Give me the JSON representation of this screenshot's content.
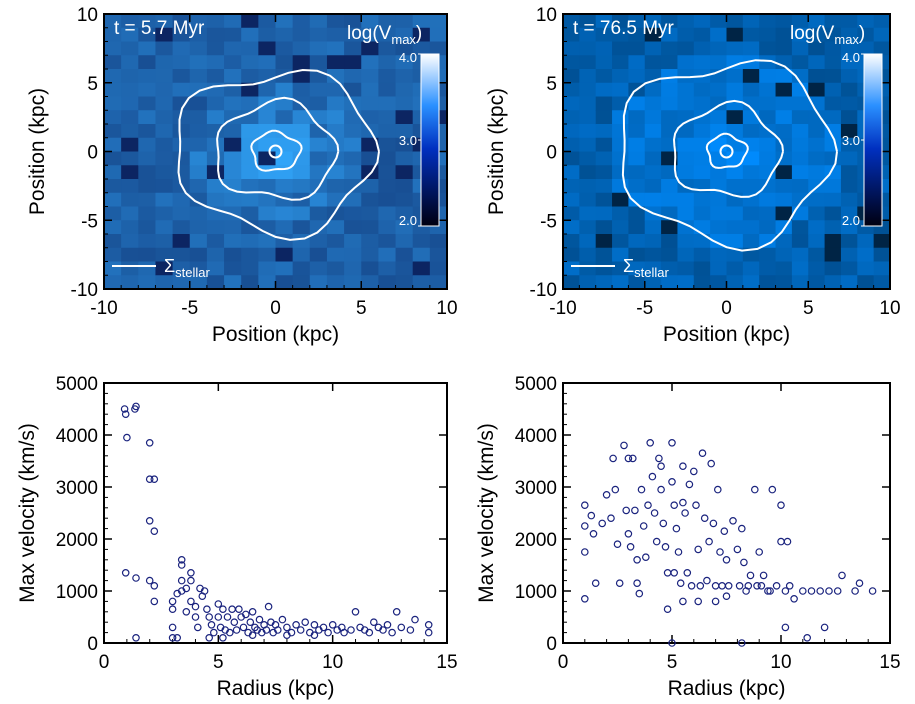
{
  "chart_data": [
    {
      "type": "heatmap",
      "panel": "top-left",
      "time_label": "t = 5.7 Myr",
      "colorbar_label": "log(V",
      "colorbar_sub": "max",
      "colorbar_close": ")",
      "colorbar_ticks": [
        "4.0",
        "3.0",
        "2.0"
      ],
      "colorbar_range": [
        2.0,
        4.0
      ],
      "legend_label": "Σ",
      "legend_sub": "stellar",
      "xlabel": "Position (kpc)",
      "ylabel": "Position (kpc)",
      "xlim": [
        -10,
        10
      ],
      "ylim": [
        -10,
        10
      ],
      "xticks": [
        "-10",
        "-5",
        "0",
        "5",
        "10"
      ],
      "yticks": [
        "-10",
        "-5",
        "0",
        "5",
        "10"
      ],
      "grid_cells": 20,
      "cell_values_description": "log10 of max velocity per 1 kpc cell; background ~2.6-2.9, centre ~3.5",
      "contours_radii_kpc": [
        1.4,
        3.5,
        5.8
      ]
    },
    {
      "type": "heatmap",
      "panel": "top-right",
      "time_label": "t = 76.5 Myr",
      "colorbar_label": "log(V",
      "colorbar_sub": "max",
      "colorbar_close": ")",
      "colorbar_ticks": [
        "4.0",
        "3.0",
        "2.0"
      ],
      "colorbar_range": [
        2.0,
        4.0
      ],
      "legend_label": "Σ",
      "legend_sub": "stellar",
      "xlabel": "Position (kpc)",
      "ylabel": "Position (kpc)",
      "xlim": [
        -10,
        10
      ],
      "ylim": [
        -10,
        10
      ],
      "xticks": [
        "-10",
        "-5",
        "0",
        "5",
        "10"
      ],
      "yticks": [
        "-10",
        "-5",
        "0",
        "5",
        "10"
      ],
      "grid_cells": 20,
      "contours_radii_kpc": [
        1.2,
        3.3,
        6.5
      ]
    },
    {
      "type": "scatter",
      "panel": "bottom-left",
      "xlabel": "Radius (kpc)",
      "ylabel": "Max velocity (km/s)",
      "xlim": [
        0,
        15
      ],
      "ylim": [
        0,
        5000
      ],
      "xticks": [
        "0",
        "5",
        "10",
        "15"
      ],
      "yticks": [
        "0",
        "1000",
        "2000",
        "3000",
        "4000",
        "5000"
      ],
      "points": [
        [
          0.9,
          4500
        ],
        [
          0.95,
          4400
        ],
        [
          1.0,
          3950
        ],
        [
          1.4,
          4550
        ],
        [
          1.35,
          4500
        ],
        [
          2.0,
          3850
        ],
        [
          2.0,
          3150
        ],
        [
          2.2,
          3150
        ],
        [
          2.0,
          2350
        ],
        [
          2.2,
          2150
        ],
        [
          0.95,
          1350
        ],
        [
          1.4,
          1250
        ],
        [
          2.0,
          1200
        ],
        [
          2.2,
          1100
        ],
        [
          2.2,
          800
        ],
        [
          1.4,
          100
        ],
        [
          3.0,
          800
        ],
        [
          3.0,
          650
        ],
        [
          3.0,
          300
        ],
        [
          3.2,
          950
        ],
        [
          3.2,
          100
        ],
        [
          3.4,
          1600
        ],
        [
          3.4,
          1500
        ],
        [
          3.4,
          1200
        ],
        [
          3.4,
          1000
        ],
        [
          3.6,
          1050
        ],
        [
          3.6,
          600
        ],
        [
          3.8,
          1350
        ],
        [
          3.8,
          1200
        ],
        [
          3.8,
          800
        ],
        [
          4.0,
          700
        ],
        [
          4.0,
          500
        ],
        [
          4.1,
          300
        ],
        [
          4.2,
          1050
        ],
        [
          4.3,
          900
        ],
        [
          4.4,
          1000
        ],
        [
          4.5,
          650
        ],
        [
          4.6,
          500
        ],
        [
          4.7,
          350
        ],
        [
          4.8,
          200
        ],
        [
          5.0,
          750
        ],
        [
          5.0,
          500
        ],
        [
          5.1,
          300
        ],
        [
          5.2,
          650
        ],
        [
          5.3,
          250
        ],
        [
          5.4,
          500
        ],
        [
          5.5,
          200
        ],
        [
          5.6,
          650
        ],
        [
          5.7,
          400
        ],
        [
          5.8,
          250
        ],
        [
          5.9,
          650
        ],
        [
          6.0,
          500
        ],
        [
          6.1,
          300
        ],
        [
          6.2,
          550
        ],
        [
          6.3,
          200
        ],
        [
          6.4,
          400
        ],
        [
          6.5,
          600
        ],
        [
          6.6,
          300
        ],
        [
          6.7,
          250
        ],
        [
          6.8,
          450
        ],
        [
          6.9,
          200
        ],
        [
          7.0,
          350
        ],
        [
          7.1,
          250
        ],
        [
          7.2,
          700
        ],
        [
          7.3,
          400
        ],
        [
          7.4,
          200
        ],
        [
          7.5,
          350
        ],
        [
          7.6,
          250
        ],
        [
          7.8,
          450
        ],
        [
          8.0,
          300
        ],
        [
          8.2,
          200
        ],
        [
          8.4,
          350
        ],
        [
          8.6,
          250
        ],
        [
          8.8,
          400
        ],
        [
          9.0,
          200
        ],
        [
          9.2,
          350
        ],
        [
          9.4,
          250
        ],
        [
          9.6,
          300
        ],
        [
          9.8,
          200
        ],
        [
          10.0,
          350
        ],
        [
          10.2,
          250
        ],
        [
          10.4,
          300
        ],
        [
          10.5,
          200
        ],
        [
          10.8,
          250
        ],
        [
          11.0,
          600
        ],
        [
          11.2,
          300
        ],
        [
          11.4,
          250
        ],
        [
          11.6,
          200
        ],
        [
          11.8,
          400
        ],
        [
          12.0,
          300
        ],
        [
          12.2,
          250
        ],
        [
          12.4,
          350
        ],
        [
          12.6,
          200
        ],
        [
          12.8,
          600
        ],
        [
          13.0,
          300
        ],
        [
          13.4,
          250
        ],
        [
          13.6,
          450
        ],
        [
          14.2,
          350
        ],
        [
          14.2,
          200
        ],
        [
          6.5,
          150
        ],
        [
          5.2,
          100
        ],
        [
          4.6,
          100
        ],
        [
          3.0,
          100
        ],
        [
          8.0,
          150
        ],
        [
          9.2,
          150
        ]
      ]
    },
    {
      "type": "scatter",
      "panel": "bottom-right",
      "xlabel": "Radius (kpc)",
      "ylabel": "Max velocity (km/s)",
      "xlim": [
        0,
        15
      ],
      "ylim": [
        0,
        5000
      ],
      "xticks": [
        "0",
        "5",
        "10",
        "15"
      ],
      "yticks": [
        "0",
        "1000",
        "2000",
        "3000",
        "4000",
        "5000"
      ],
      "points": [
        [
          1.0,
          2650
        ],
        [
          1.0,
          2250
        ],
        [
          1.0,
          1750
        ],
        [
          1.0,
          850
        ],
        [
          1.3,
          2450
        ],
        [
          1.4,
          2100
        ],
        [
          1.5,
          1150
        ],
        [
          1.8,
          2300
        ],
        [
          2.0,
          2850
        ],
        [
          2.2,
          2400
        ],
        [
          2.3,
          3550
        ],
        [
          2.4,
          2950
        ],
        [
          2.5,
          1900
        ],
        [
          2.6,
          1150
        ],
        [
          2.8,
          3800
        ],
        [
          2.9,
          2550
        ],
        [
          3.0,
          3550
        ],
        [
          3.0,
          2100
        ],
        [
          3.1,
          1850
        ],
        [
          3.2,
          3550
        ],
        [
          3.3,
          2550
        ],
        [
          3.4,
          1600
        ],
        [
          3.4,
          1150
        ],
        [
          3.5,
          950
        ],
        [
          3.6,
          2950
        ],
        [
          3.7,
          2250
        ],
        [
          3.8,
          1650
        ],
        [
          3.9,
          2650
        ],
        [
          4.0,
          3850
        ],
        [
          4.1,
          3200
        ],
        [
          4.2,
          2500
        ],
        [
          4.3,
          1950
        ],
        [
          4.4,
          3550
        ],
        [
          4.5,
          3400
        ],
        [
          4.5,
          2950
        ],
        [
          4.6,
          2300
        ],
        [
          4.7,
          1850
        ],
        [
          4.8,
          1350
        ],
        [
          4.8,
          650
        ],
        [
          5.0,
          3850
        ],
        [
          5.0,
          3100
        ],
        [
          5.1,
          2650
        ],
        [
          5.1,
          1350
        ],
        [
          5.2,
          2200
        ],
        [
          5.3,
          1750
        ],
        [
          5.4,
          1150
        ],
        [
          5.5,
          3400
        ],
        [
          5.5,
          2700
        ],
        [
          5.6,
          2500
        ],
        [
          5.7,
          1350
        ],
        [
          5.8,
          3050
        ],
        [
          5.9,
          1100
        ],
        [
          6.0,
          3300
        ],
        [
          6.1,
          2650
        ],
        [
          6.2,
          1800
        ],
        [
          6.3,
          1100
        ],
        [
          6.4,
          3650
        ],
        [
          6.5,
          2400
        ],
        [
          6.6,
          1200
        ],
        [
          6.7,
          1950
        ],
        [
          6.8,
          3450
        ],
        [
          6.9,
          2300
        ],
        [
          7.0,
          1100
        ],
        [
          7.1,
          2950
        ],
        [
          7.2,
          1750
        ],
        [
          7.3,
          1100
        ],
        [
          7.4,
          2150
        ],
        [
          7.5,
          1600
        ],
        [
          7.6,
          1100
        ],
        [
          7.8,
          2350
        ],
        [
          8.0,
          1800
        ],
        [
          8.1,
          1100
        ],
        [
          8.2,
          2200
        ],
        [
          8.3,
          1550
        ],
        [
          8.4,
          1000
        ],
        [
          8.6,
          1300
        ],
        [
          8.8,
          2950
        ],
        [
          8.9,
          1100
        ],
        [
          9.0,
          1750
        ],
        [
          9.1,
          1100
        ],
        [
          9.2,
          1300
        ],
        [
          9.4,
          1000
        ],
        [
          9.6,
          2950
        ],
        [
          9.8,
          1100
        ],
        [
          10.0,
          1950
        ],
        [
          10.0,
          2650
        ],
        [
          10.2,
          1000
        ],
        [
          10.3,
          1950
        ],
        [
          10.4,
          1100
        ],
        [
          10.6,
          850
        ],
        [
          11.0,
          1000
        ],
        [
          11.2,
          100
        ],
        [
          11.4,
          1000
        ],
        [
          11.8,
          1000
        ],
        [
          12.0,
          300
        ],
        [
          12.2,
          1000
        ],
        [
          12.6,
          1000
        ],
        [
          12.8,
          1300
        ],
        [
          13.4,
          1000
        ],
        [
          13.6,
          1150
        ],
        [
          14.2,
          1000
        ],
        [
          5.0,
          0
        ],
        [
          8.2,
          0
        ],
        [
          10.2,
          300
        ],
        [
          5.5,
          800
        ],
        [
          6.2,
          800
        ],
        [
          7.0,
          800
        ],
        [
          7.5,
          900
        ],
        [
          8.5,
          1100
        ],
        [
          9.5,
          1000
        ]
      ]
    }
  ]
}
